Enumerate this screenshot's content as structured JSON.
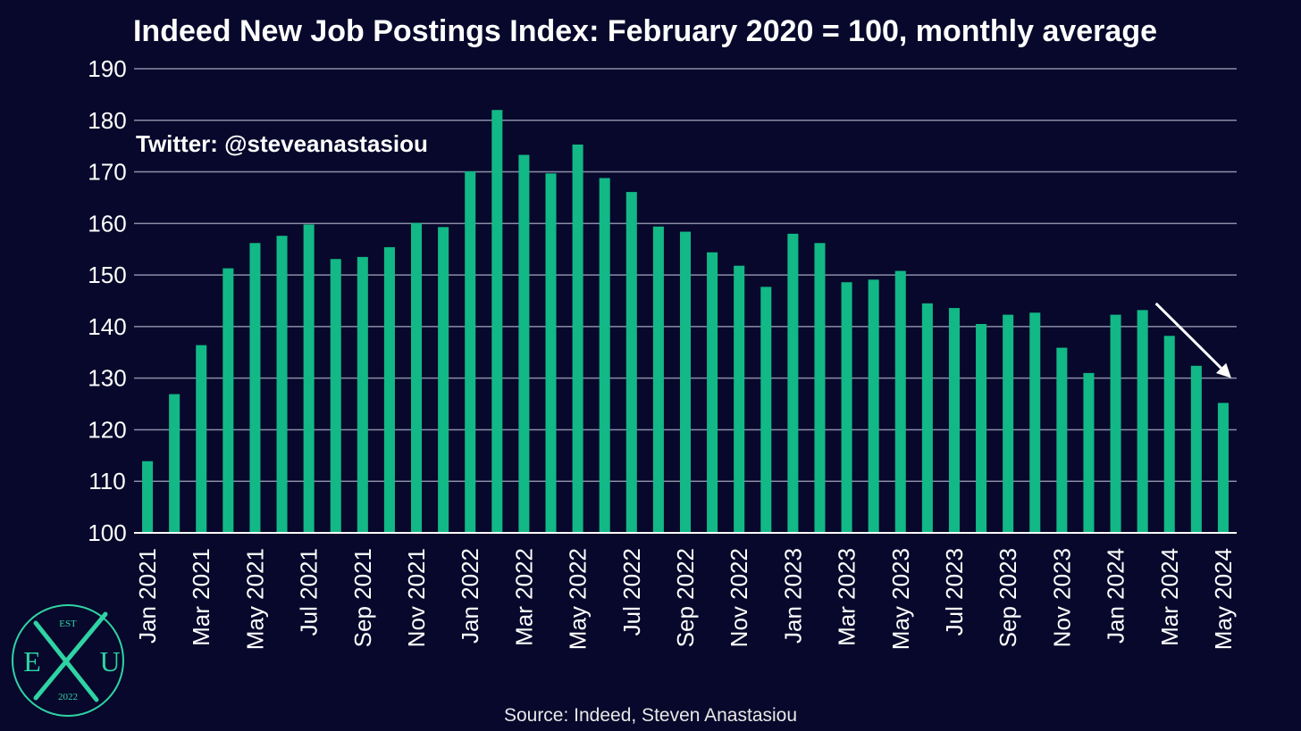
{
  "chart_data": {
    "type": "bar",
    "title": "Indeed New Job Postings Index: February 2020 = 100, monthly average",
    "xlabel": "",
    "ylabel": "",
    "ylim": [
      100,
      190
    ],
    "yticks": [
      100,
      110,
      120,
      130,
      140,
      150,
      160,
      170,
      180,
      190
    ],
    "grid": true,
    "categories": [
      "Jan 2021",
      "Feb 2021",
      "Mar 2021",
      "Apr 2021",
      "May 2021",
      "Jun 2021",
      "Jul 2021",
      "Aug 2021",
      "Sep 2021",
      "Oct 2021",
      "Nov 2021",
      "Dec 2021",
      "Jan 2022",
      "Feb 2022",
      "Mar 2022",
      "Apr 2022",
      "May 2022",
      "Jun 2022",
      "Jul 2022",
      "Aug 2022",
      "Sep 2022",
      "Oct 2022",
      "Nov 2022",
      "Dec 2022",
      "Jan 2023",
      "Feb 2023",
      "Mar 2023",
      "Apr 2023",
      "May 2023",
      "Jun 2023",
      "Jul 2023",
      "Aug 2023",
      "Sep 2023",
      "Oct 2023",
      "Nov 2023",
      "Dec 2023",
      "Jan 2024",
      "Feb 2024",
      "Mar 2024",
      "Apr 2024",
      "May 2024"
    ],
    "shown_tick_labels": [
      "Jan 2021",
      "Mar 2021",
      "May 2021",
      "Jul 2021",
      "Sep 2021",
      "Nov 2021",
      "Jan 2022",
      "Mar 2022",
      "May 2022",
      "Jul 2022",
      "Sep 2022",
      "Nov 2022",
      "Jan 2023",
      "Mar 2023",
      "May 2023",
      "Jul 2023",
      "Sep 2023",
      "Nov 2023",
      "Jan 2024",
      "Mar 2024",
      "May 2024"
    ],
    "values": [
      113.9,
      126.9,
      136.4,
      151.3,
      156.2,
      157.6,
      159.8,
      153.1,
      153.5,
      155.4,
      160.1,
      159.3,
      170.1,
      182.0,
      173.3,
      169.7,
      175.3,
      168.8,
      166.1,
      159.4,
      158.4,
      154.4,
      151.8,
      147.7,
      158.0,
      156.2,
      148.6,
      149.1,
      150.8,
      144.5,
      143.6,
      140.5,
      142.3,
      142.7,
      135.9,
      131.0,
      142.3,
      143.2,
      138.2,
      132.4,
      125.2
    ],
    "bar_color": "#12b886",
    "annotations": [
      {
        "text": "Twitter: @steveanastasiou"
      },
      {
        "type": "arrow",
        "from_category": "Feb 2024",
        "from_value": 144.5,
        "to_category": "May 2024",
        "to_value": 130.0,
        "color": "#ffffff"
      }
    ],
    "source": "Source: Indeed, Steven Anastasiou"
  },
  "logo": {
    "top": "EST",
    "left": "E",
    "right": "U",
    "bottom": "2022",
    "color": "#2fd3a4"
  },
  "colors": {
    "background": "#07082b",
    "grid": "#8a8ea6",
    "axis": "#ffffff"
  }
}
